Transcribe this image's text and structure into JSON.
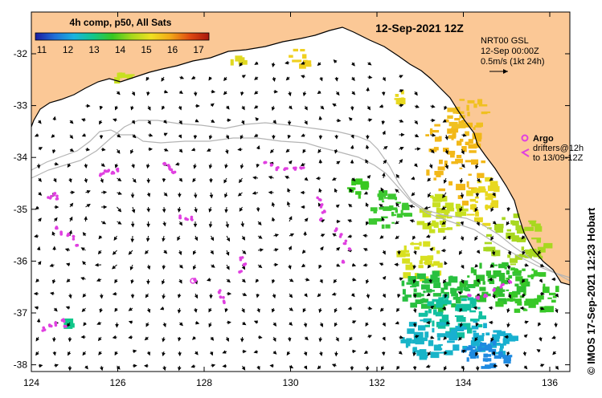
{
  "title": "4h comp, p50, All Sats",
  "date_label": "12-Sep-2021 12Z",
  "colorbar": {
    "ticks": [
      "11",
      "12",
      "13",
      "14",
      "15",
      "16",
      "17"
    ],
    "colors": [
      "#1a1aa0",
      "#1f6fd8",
      "#19b3e0",
      "#12c78a",
      "#38c820",
      "#a7d81c",
      "#f0e020",
      "#f2a818",
      "#e04a12",
      "#a8160c"
    ]
  },
  "current_legend": {
    "line1": "NRT00 GSL",
    "line2": "12-Sep 00:00Z",
    "line3": "0.5m/s (1kt 24h)"
  },
  "argo": {
    "label": "Argo",
    "line1": "drifters@12h",
    "line2": "to 13/09-12Z",
    "color": "#e040e0"
  },
  "credit": "© IMOS 17-Sep-2021 12:23 Hobart",
  "axes": {
    "x_ticks": [
      "124",
      "126",
      "128",
      "130",
      "132",
      "134",
      "136"
    ],
    "y_ticks": [
      "-32",
      "-33",
      "-34",
      "-35",
      "-36",
      "-37",
      "-38"
    ]
  },
  "colors": {
    "land": "#fbc896",
    "ocean": "#ffffff",
    "coast": "#000000",
    "bathy": "#b4b4b4"
  }
}
